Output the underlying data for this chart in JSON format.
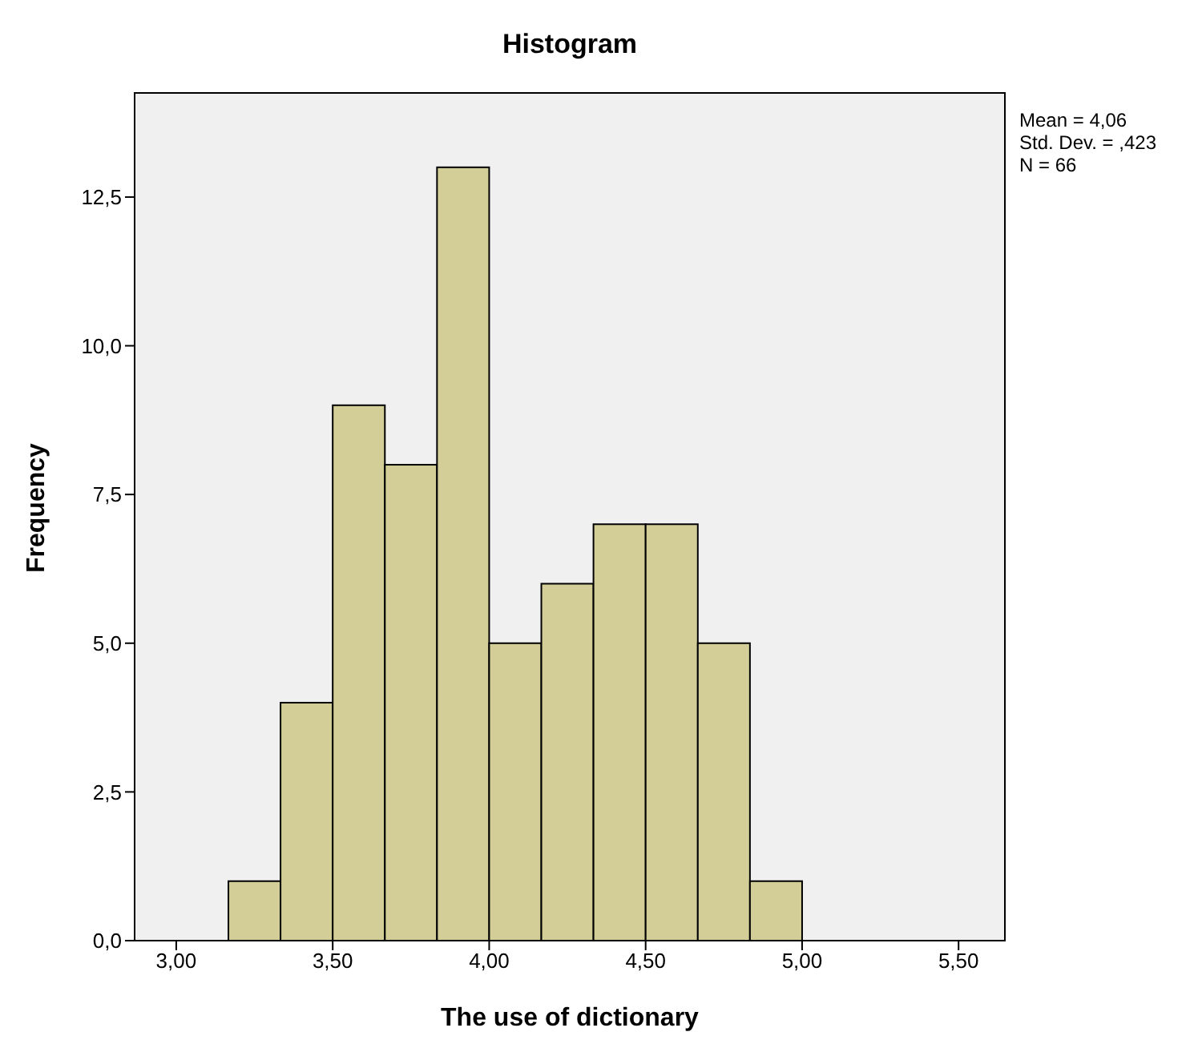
{
  "chart_data": {
    "type": "histogram",
    "title": "Histogram",
    "xlabel": "The use of dictionary",
    "ylabel": "Frequency",
    "bins": [
      3.1667,
      3.3333,
      3.5,
      3.6667,
      3.8333,
      4.0,
      4.1667,
      4.3333,
      4.5,
      4.6667,
      4.8333,
      5.0
    ],
    "values": [
      1,
      4,
      9,
      8,
      13,
      5,
      6,
      7,
      7,
      5,
      1
    ],
    "color": "#d3ce97",
    "xlim": [
      2.867,
      5.648
    ],
    "xticks": [
      {
        "value": 3,
        "label": "3,00"
      },
      {
        "value": 3.5,
        "label": "3,50"
      },
      {
        "value": 4,
        "label": "4,00"
      },
      {
        "value": 4.5,
        "label": "4,50"
      },
      {
        "value": 5,
        "label": "5,00"
      },
      {
        "value": 5.5,
        "label": "5,50"
      }
    ],
    "ylim": [
      0,
      14.25
    ],
    "yticks": [
      {
        "value": 0,
        "label": "0,0"
      },
      {
        "value": 2.5,
        "label": "2,5"
      },
      {
        "value": 5,
        "label": "5,0"
      },
      {
        "value": 7.5,
        "label": "7,5"
      },
      {
        "value": 10,
        "label": "10,0"
      },
      {
        "value": 12.5,
        "label": "12,5"
      }
    ],
    "annotations": [
      "Mean = 4,06",
      "Std. Dev. = ,423",
      "N = 66"
    ]
  }
}
